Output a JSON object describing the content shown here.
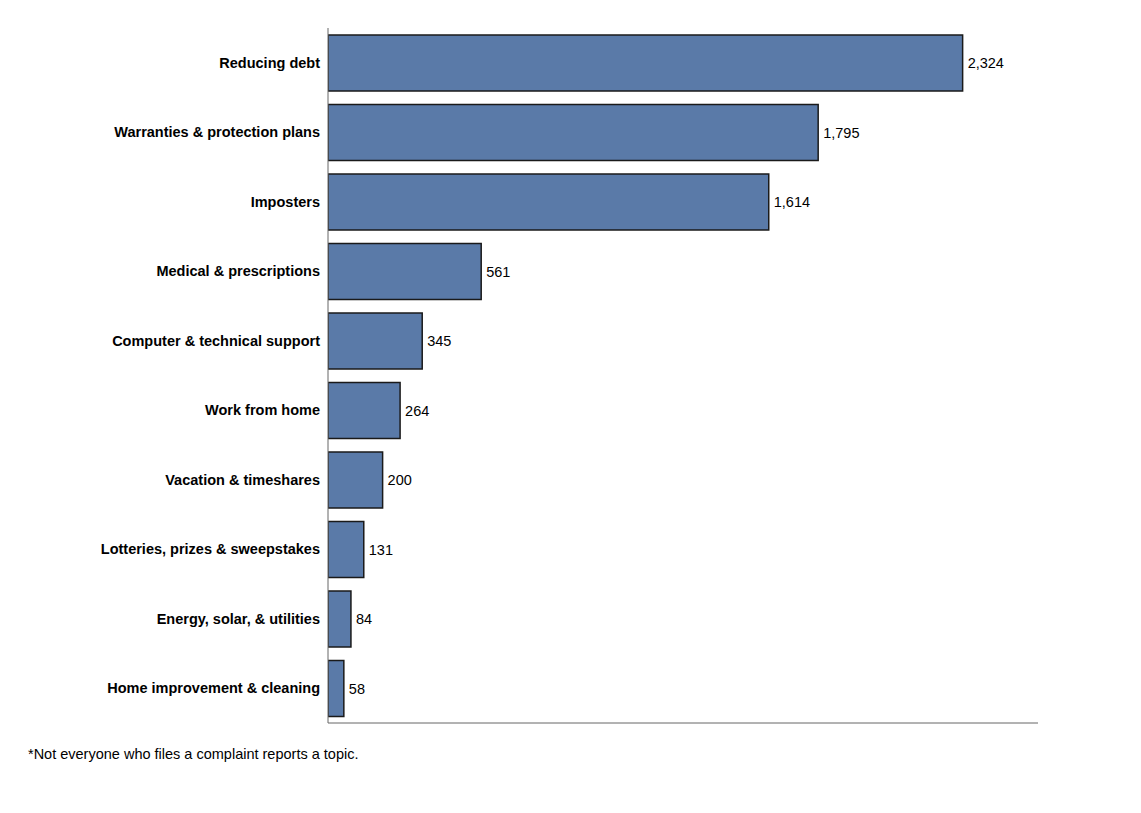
{
  "chart_data": {
    "type": "bar",
    "orientation": "horizontal",
    "categories": [
      "Home improvement & cleaning",
      "Energy, solar, & utilities",
      "Lotteries, prizes & sweepstakes",
      "Vacation & timeshares",
      "Work from home",
      "Computer & technical support",
      "Medical & prescriptions",
      "Imposters",
      "Warranties & protection plans",
      "Reducing debt"
    ],
    "values": [
      58,
      84,
      131,
      200,
      264,
      345,
      561,
      1614,
      1795,
      2324
    ],
    "value_labels": [
      "58",
      "84",
      "131",
      "200",
      "264",
      "345",
      "561",
      "1,614",
      "1,795",
      "2,324"
    ],
    "data_labels": true,
    "color": "#5a7aa8",
    "xlim": [
      0,
      2600
    ],
    "grid": false,
    "tick_labels": "y",
    "annotations": [
      "*Not everyone who files a complaint reports a topic."
    ]
  }
}
